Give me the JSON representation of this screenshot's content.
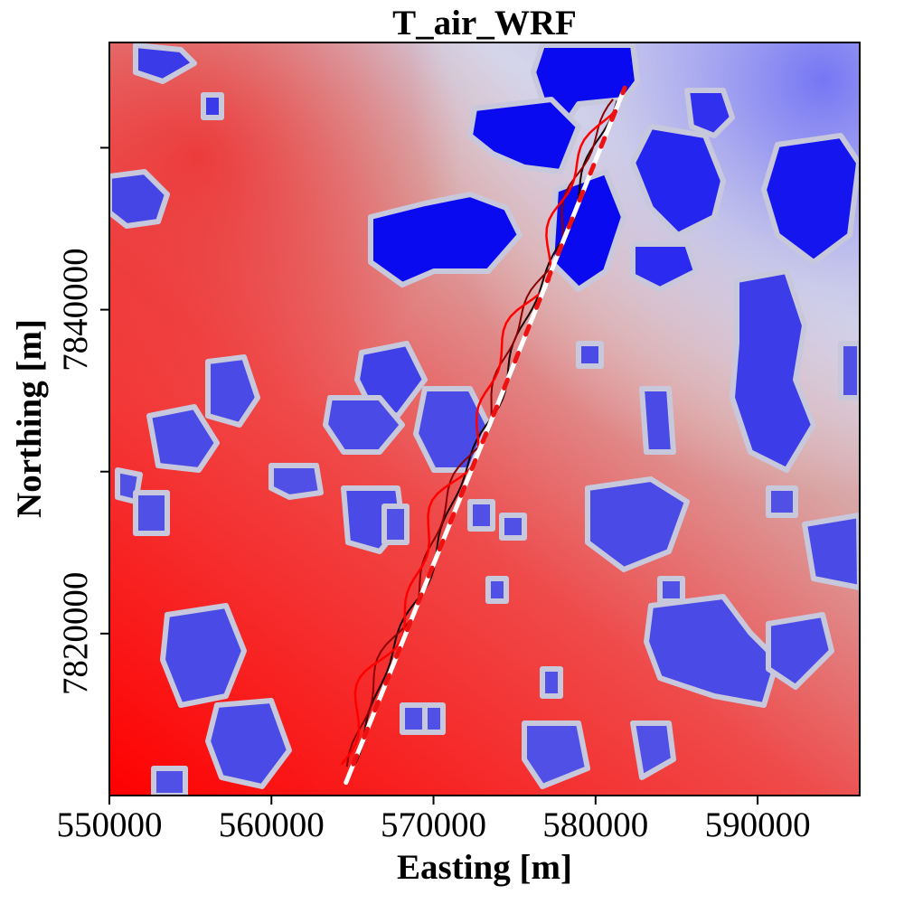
{
  "chart_data": {
    "type": "heatmap",
    "title": "T_air_WRF",
    "xlabel": "Easting [m]",
    "ylabel": "Northing [m]",
    "xlim": [
      550000,
      596300
    ],
    "ylim": [
      7810000,
      7856500
    ],
    "x_ticks": [
      550000,
      560000,
      570000,
      580000,
      590000
    ],
    "x_tick_labels": [
      "550000",
      "560000",
      "570000",
      "580000",
      "590000"
    ],
    "y_ticks": [
      7820000,
      7840000
    ],
    "y_tick_labels": [
      "7820000",
      "7840000"
    ],
    "y_minor_ticks": [
      7830000,
      7850000
    ],
    "grid": false,
    "legend": "none",
    "colormap": {
      "warm": "#ff0000",
      "mid": "#dcdcdc",
      "cold": "#0000ff"
    },
    "track": {
      "color": "#ffffff",
      "style": "dashed",
      "x": [
        564600,
        581800
      ],
      "y": [
        7810800,
        7853700
      ]
    },
    "contours": [
      {
        "color": "#1a0000"
      },
      {
        "color": "#8b0000"
      },
      {
        "color": "#ff0000"
      }
    ]
  }
}
